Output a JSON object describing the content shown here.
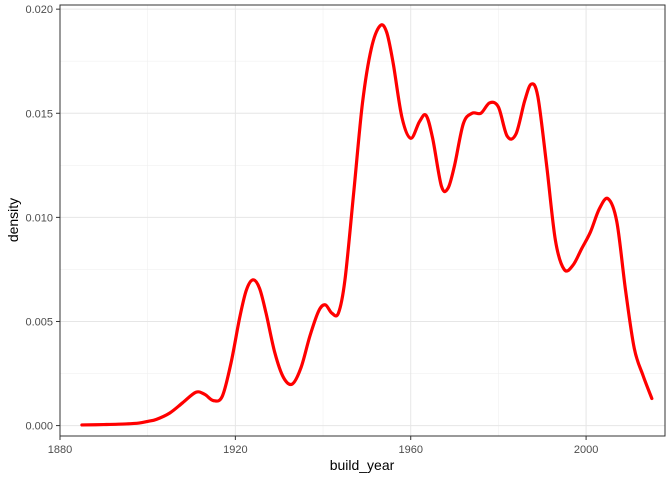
{
  "chart_data": {
    "type": "line",
    "title": "",
    "xlabel": "build_year",
    "ylabel": "density",
    "xlim": [
      1880,
      2018
    ],
    "ylim": [
      -0.0005,
      0.0202
    ],
    "grid": true,
    "legend": "none",
    "line_color": "#ff0000",
    "x_ticks": [
      1880,
      1920,
      1960,
      2000
    ],
    "x_tick_labels": [
      "1880",
      "1920",
      "1960",
      "2000"
    ],
    "x_minor_ticks": [
      1900,
      1940,
      1980
    ],
    "y_ticks": [
      0.0,
      0.005,
      0.01,
      0.015,
      0.02
    ],
    "y_tick_labels": [
      "0.000",
      "0.005",
      "0.010",
      "0.015",
      "0.020"
    ],
    "y_minor_ticks": [
      0.0025,
      0.0075,
      0.0125,
      0.0175
    ],
    "series": [
      {
        "x": [
          1885,
          1890,
          1895,
          1898,
          1900,
          1902,
          1905,
          1908,
          1911,
          1913,
          1915,
          1917,
          1919,
          1921,
          1922.5,
          1924,
          1925.5,
          1927,
          1929,
          1931,
          1933,
          1935,
          1937,
          1939,
          1940.5,
          1942,
          1943.5,
          1945,
          1947,
          1949,
          1951,
          1953,
          1954.5,
          1956,
          1958,
          1960,
          1962,
          1963.5,
          1965,
          1967,
          1968.5,
          1970,
          1972,
          1974,
          1976,
          1978,
          1980,
          1982,
          1984,
          1986,
          1987.5,
          1989,
          1991,
          1993,
          1995,
          1997,
          1999,
          2001,
          2003,
          2005,
          2007,
          2009,
          2011,
          2013,
          2015
        ],
        "y": [
          3e-05,
          5e-05,
          8e-05,
          0.00012,
          0.0002,
          0.0003,
          0.0006,
          0.0011,
          0.0016,
          0.0015,
          0.0012,
          0.0014,
          0.003,
          0.0052,
          0.0065,
          0.007,
          0.0066,
          0.0054,
          0.0035,
          0.0023,
          0.002,
          0.0028,
          0.0043,
          0.0055,
          0.0058,
          0.0054,
          0.0054,
          0.007,
          0.0112,
          0.0155,
          0.0181,
          0.0192,
          0.0189,
          0.0174,
          0.0148,
          0.0138,
          0.0146,
          0.0149,
          0.0138,
          0.0115,
          0.0114,
          0.0125,
          0.0145,
          0.015,
          0.015,
          0.0155,
          0.0153,
          0.0139,
          0.014,
          0.0156,
          0.0164,
          0.0158,
          0.0125,
          0.0089,
          0.0075,
          0.0077,
          0.0085,
          0.0093,
          0.0104,
          0.0109,
          0.0098,
          0.0065,
          0.0037,
          0.0024,
          0.0013
        ]
      }
    ]
  }
}
